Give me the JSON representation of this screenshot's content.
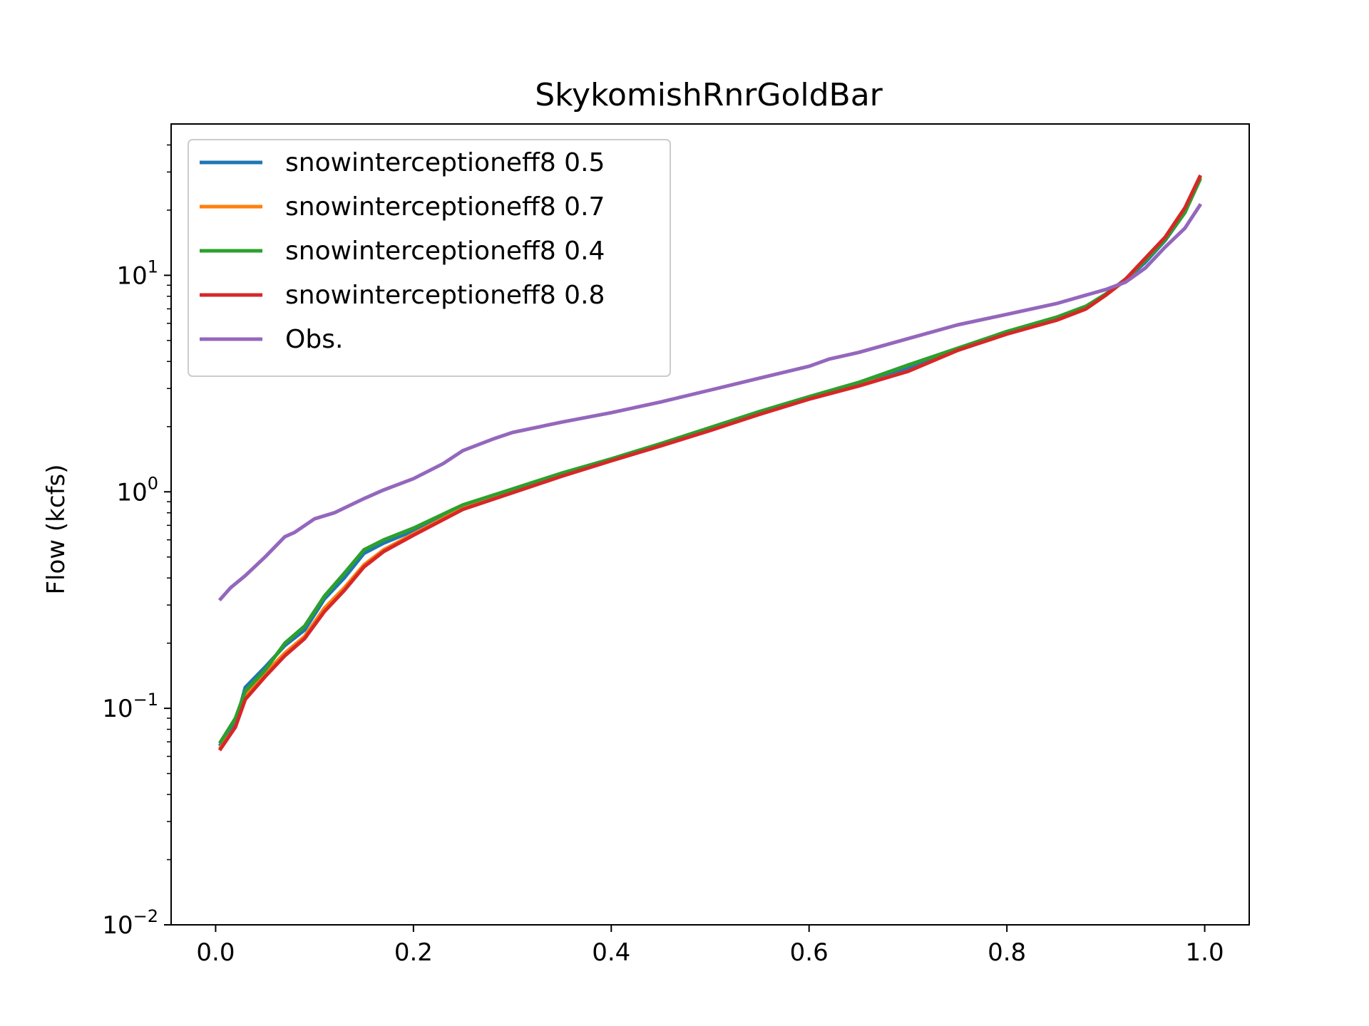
{
  "chart_data": {
    "type": "line",
    "title": "SkykomishRnrGoldBar",
    "xlabel": "",
    "ylabel": "Flow (kcfs)",
    "yscale": "log",
    "xlim": [
      -0.045,
      1.045
    ],
    "ylim": [
      0.01,
      50
    ],
    "xticks": [
      "0.0",
      "0.2",
      "0.4",
      "0.6",
      "0.8",
      "1.0"
    ],
    "yticks": [
      {
        "base": "10",
        "exp": "−2"
      },
      {
        "base": "10",
        "exp": "−1"
      },
      {
        "base": "10",
        "exp": "0"
      },
      {
        "base": "10",
        "exp": "1"
      }
    ],
    "grid": false,
    "legend_position": "upper-left",
    "series": [
      {
        "name": "snowinterceptioneff8 0.5",
        "color": "#1f77b4",
        "x": [
          0.005,
          0.02,
          0.03,
          0.05,
          0.07,
          0.09,
          0.11,
          0.13,
          0.15,
          0.17,
          0.2,
          0.25,
          0.3,
          0.35,
          0.4,
          0.45,
          0.5,
          0.55,
          0.6,
          0.65,
          0.7,
          0.75,
          0.8,
          0.85,
          0.88,
          0.9,
          0.92,
          0.94,
          0.96,
          0.98,
          0.995
        ],
        "y": [
          0.068,
          0.085,
          0.125,
          0.155,
          0.195,
          0.23,
          0.32,
          0.4,
          0.52,
          0.58,
          0.66,
          0.85,
          1.0,
          1.2,
          1.4,
          1.65,
          1.95,
          2.3,
          2.7,
          3.1,
          3.7,
          4.5,
          5.4,
          6.3,
          7.1,
          8.1,
          9.5,
          11.5,
          14.5,
          19.5,
          28
        ]
      },
      {
        "name": "snowinterceptioneff8 0.7",
        "color": "#ff7f0e",
        "x": [
          0.005,
          0.02,
          0.03,
          0.05,
          0.07,
          0.09,
          0.11,
          0.13,
          0.15,
          0.17,
          0.2,
          0.25,
          0.3,
          0.35,
          0.4,
          0.45,
          0.5,
          0.55,
          0.6,
          0.65,
          0.7,
          0.75,
          0.8,
          0.85,
          0.88,
          0.9,
          0.92,
          0.94,
          0.96,
          0.98,
          0.995
        ],
        "y": [
          0.066,
          0.082,
          0.115,
          0.145,
          0.18,
          0.215,
          0.29,
          0.36,
          0.46,
          0.54,
          0.64,
          0.84,
          1.0,
          1.19,
          1.4,
          1.65,
          1.93,
          2.3,
          2.7,
          3.1,
          3.6,
          4.5,
          5.4,
          6.2,
          7.0,
          8.1,
          9.5,
          11.8,
          14.8,
          20,
          28
        ]
      },
      {
        "name": "snowinterceptioneff8 0.4",
        "color": "#2ca02c",
        "x": [
          0.005,
          0.02,
          0.03,
          0.05,
          0.07,
          0.09,
          0.11,
          0.13,
          0.15,
          0.17,
          0.2,
          0.25,
          0.3,
          0.35,
          0.4,
          0.45,
          0.5,
          0.55,
          0.6,
          0.65,
          0.7,
          0.75,
          0.8,
          0.85,
          0.88,
          0.9,
          0.92,
          0.94,
          0.96,
          0.98,
          0.995
        ],
        "y": [
          0.07,
          0.09,
          0.12,
          0.15,
          0.2,
          0.24,
          0.33,
          0.42,
          0.54,
          0.6,
          0.68,
          0.87,
          1.03,
          1.22,
          1.42,
          1.67,
          1.98,
          2.35,
          2.75,
          3.2,
          3.85,
          4.6,
          5.5,
          6.4,
          7.2,
          8.2,
          9.6,
          11.7,
          14.6,
          19.5,
          27.5
        ]
      },
      {
        "name": "snowinterceptioneff8 0.8",
        "color": "#d62728",
        "x": [
          0.005,
          0.02,
          0.03,
          0.05,
          0.07,
          0.09,
          0.11,
          0.13,
          0.15,
          0.17,
          0.2,
          0.25,
          0.3,
          0.35,
          0.4,
          0.45,
          0.5,
          0.55,
          0.6,
          0.65,
          0.7,
          0.75,
          0.8,
          0.85,
          0.88,
          0.9,
          0.92,
          0.94,
          0.96,
          0.98,
          0.995
        ],
        "y": [
          0.065,
          0.082,
          0.11,
          0.14,
          0.175,
          0.21,
          0.28,
          0.35,
          0.45,
          0.53,
          0.63,
          0.83,
          0.99,
          1.18,
          1.39,
          1.63,
          1.92,
          2.28,
          2.68,
          3.08,
          3.6,
          4.5,
          5.35,
          6.2,
          7.0,
          8.1,
          9.6,
          12.0,
          15.0,
          20.5,
          28.5
        ]
      },
      {
        "name": "Obs.",
        "color": "#9467bd",
        "x": [
          0.005,
          0.015,
          0.03,
          0.05,
          0.07,
          0.08,
          0.1,
          0.12,
          0.15,
          0.17,
          0.2,
          0.23,
          0.25,
          0.28,
          0.3,
          0.35,
          0.4,
          0.45,
          0.5,
          0.55,
          0.6,
          0.62,
          0.65,
          0.7,
          0.75,
          0.8,
          0.85,
          0.88,
          0.9,
          0.92,
          0.94,
          0.96,
          0.98,
          0.995
        ],
        "y": [
          0.32,
          0.36,
          0.41,
          0.5,
          0.62,
          0.65,
          0.75,
          0.8,
          0.93,
          1.02,
          1.15,
          1.35,
          1.55,
          1.75,
          1.88,
          2.1,
          2.32,
          2.6,
          2.95,
          3.35,
          3.8,
          4.1,
          4.4,
          5.1,
          5.9,
          6.6,
          7.4,
          8.1,
          8.6,
          9.3,
          10.8,
          13.5,
          16.5,
          21.0
        ]
      }
    ]
  }
}
